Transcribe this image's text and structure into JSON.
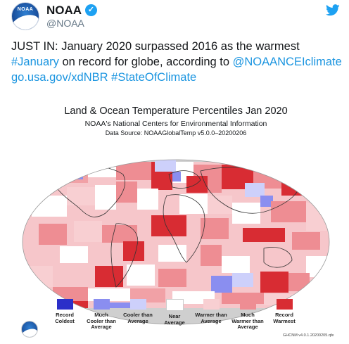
{
  "account": {
    "name": "NOAA",
    "handle": "@NOAA",
    "avatar_text": "NOAA",
    "verified_icon": "check-icon",
    "logo_icon": "twitter-bird-icon"
  },
  "tweet": {
    "part1": "JUST IN: January 2020 surpassed 2016 as the warmest ",
    "hashtag1": "#January",
    "part2": " on record for globe, according to ",
    "mention": "@NOAANCEIclimate",
    "part3": " ",
    "url": "go.usa.gov/xdNBR",
    "part4": " ",
    "hashtag2": "#StateOfClimate"
  },
  "map": {
    "title": "Land & Ocean Temperature Percentiles Jan 2020",
    "subtitle": "NOAA's National Centers for Environmental Information",
    "source": "Data Source: NOAAGlobalTemp v5.0.0–20200206",
    "version": "GHCNM v4.0.1.20200205.qfe"
  },
  "legend": [
    {
      "line1": "Record",
      "line2": "Coldest",
      "line3": "",
      "color": "#2b2fc9"
    },
    {
      "line1": "Much",
      "line2": "Cooler than",
      "line3": "Average",
      "color": "#8a8ef0"
    },
    {
      "line1": "Cooler than",
      "line2": "Average",
      "line3": "",
      "color": "#cdd0fb"
    },
    {
      "line1": "Near",
      "line2": "Average",
      "line3": "",
      "color": "#ffffff"
    },
    {
      "line1": "Warmer than",
      "line2": "Average",
      "line3": "",
      "color": "#f8cfd2"
    },
    {
      "line1": "Much",
      "line2": "Warmer than",
      "line3": "Average",
      "color": "#ee8d93"
    },
    {
      "line1": "Record",
      "line2": "Warmest",
      "line3": "",
      "color": "#d82c33"
    }
  ]
}
